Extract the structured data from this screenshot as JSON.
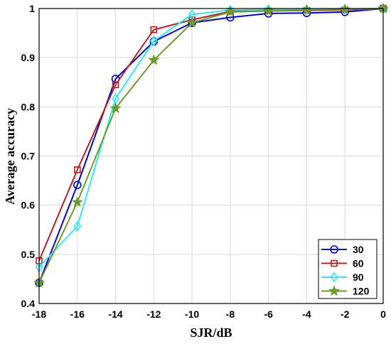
{
  "chart_data": {
    "type": "line",
    "title": "",
    "xlabel": "SJR/dB",
    "ylabel": "Average accuracy",
    "xlim": [
      -18,
      0
    ],
    "ylim": [
      0.4,
      1
    ],
    "grid": true,
    "legend_position": "bottom-right",
    "x": [
      -18,
      -16,
      -14,
      -12,
      -10,
      -8,
      -6,
      -4,
      -2,
      0
    ],
    "x_tick_labels": [
      "-18",
      "-16",
      "-14",
      "-12",
      "-10",
      "-8",
      "-6",
      "-4",
      "-2",
      "0"
    ],
    "y_ticks": [
      0.4,
      0.5,
      0.6,
      0.7,
      0.8,
      0.9,
      1
    ],
    "y_tick_labels": [
      "0.4",
      "0.5",
      "0.6",
      "0.7",
      "0.8",
      "0.9",
      "1"
    ],
    "series": [
      {
        "name": "30",
        "color": "#0000cc",
        "marker": "circle",
        "values": [
          0.442,
          0.641,
          0.857,
          0.933,
          0.971,
          0.982,
          0.99,
          0.991,
          0.993,
          1.0
        ]
      },
      {
        "name": "60",
        "color": "#b22222",
        "marker": "square",
        "values": [
          0.487,
          0.672,
          0.845,
          0.957,
          0.977,
          0.994,
          0.995,
          0.996,
          0.997,
          1.0
        ]
      },
      {
        "name": "90",
        "color": "#33e6f0",
        "marker": "diamond",
        "values": [
          0.474,
          0.557,
          0.817,
          0.934,
          0.988,
          0.997,
          0.998,
          0.998,
          0.999,
          1.0
        ]
      },
      {
        "name": "120",
        "color": "#6b9a2e",
        "marker": "star",
        "values": [
          0.442,
          0.606,
          0.797,
          0.895,
          0.971,
          0.993,
          0.995,
          0.997,
          0.998,
          1.0
        ]
      }
    ]
  }
}
